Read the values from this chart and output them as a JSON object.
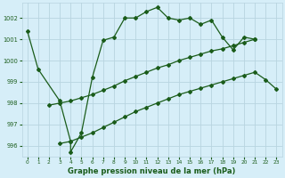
{
  "title": "Graphe pression niveau de la mer (hPa)",
  "background_color": "#d6eef8",
  "grid_color": "#b8d4e0",
  "line_color": "#1a5c1a",
  "xlim": [
    -0.5,
    23.5
  ],
  "ylim": [
    995.5,
    1002.7
  ],
  "yticks": [
    996,
    997,
    998,
    999,
    1000,
    1001,
    1002
  ],
  "xticks": [
    0,
    1,
    2,
    3,
    4,
    5,
    6,
    7,
    8,
    9,
    10,
    11,
    12,
    13,
    14,
    15,
    16,
    17,
    18,
    19,
    20,
    21,
    22,
    23
  ],
  "series": [
    {
      "x": [
        0,
        1,
        3,
        4,
        4,
        5,
        6,
        7,
        8,
        9,
        10,
        11,
        12,
        13,
        14,
        15,
        16,
        17,
        18,
        19,
        20,
        21
      ],
      "y": [
        1001.4,
        999.6,
        998.1,
        996.2,
        995.7,
        996.6,
        999.2,
        1000.95,
        1001.1,
        1002.0,
        1002.0,
        1002.3,
        1002.5,
        1002.0,
        1001.9,
        1002.0,
        1001.7,
        1001.9,
        1001.1,
        1000.5,
        1001.1,
        1001.0
      ]
    },
    {
      "x": [
        2,
        3,
        4,
        5,
        6,
        7,
        8,
        9,
        10,
        11,
        12,
        13,
        14,
        15,
        16,
        17,
        18,
        19,
        20,
        21
      ],
      "y": [
        997.9,
        998.0,
        998.1,
        998.25,
        998.4,
        998.6,
        998.8,
        999.05,
        999.25,
        999.45,
        999.65,
        999.8,
        1000.0,
        1000.15,
        1000.3,
        1000.45,
        1000.55,
        1000.7,
        1000.85,
        1001.0
      ]
    },
    {
      "x": [
        3,
        4,
        5,
        6,
        7,
        8,
        9,
        10,
        11,
        12,
        13,
        14,
        15,
        16,
        17,
        18,
        19,
        20,
        21,
        22,
        23
      ],
      "y": [
        996.1,
        996.2,
        996.4,
        996.6,
        996.85,
        997.1,
        997.35,
        997.6,
        997.8,
        998.0,
        998.2,
        998.4,
        998.55,
        998.7,
        998.85,
        999.0,
        999.15,
        999.3,
        999.45,
        999.1,
        998.65
      ]
    }
  ]
}
